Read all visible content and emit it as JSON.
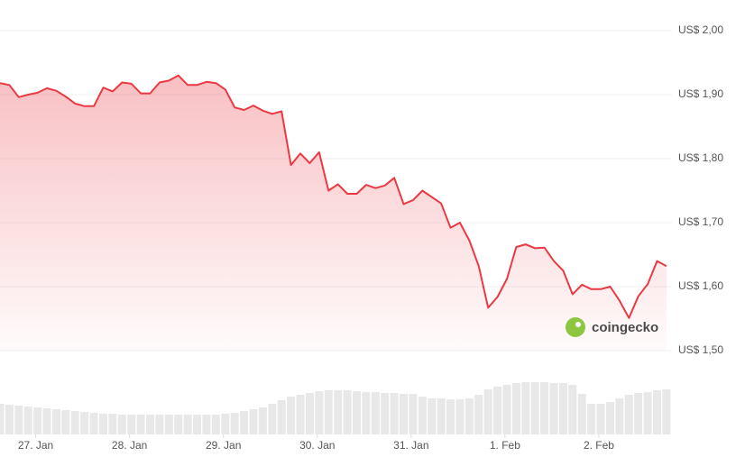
{
  "chart_data": {
    "type": "area",
    "watermark": "coingecko",
    "x": [
      -0.38,
      -0.28,
      -0.18,
      -0.08,
      0.02,
      0.12,
      0.22,
      0.32,
      0.42,
      0.52,
      0.62,
      0.72,
      0.82,
      0.92,
      1.02,
      1.12,
      1.22,
      1.32,
      1.42,
      1.52,
      1.62,
      1.72,
      1.82,
      1.92,
      2.02,
      2.12,
      2.22,
      2.32,
      2.42,
      2.52,
      2.62,
      2.72,
      2.82,
      2.92,
      3.02,
      3.12,
      3.22,
      3.32,
      3.42,
      3.52,
      3.62,
      3.72,
      3.82,
      3.92,
      4.02,
      4.12,
      4.22,
      4.32,
      4.42,
      4.52,
      4.62,
      4.72,
      4.82,
      4.92,
      5.02,
      5.12,
      5.22,
      5.32,
      5.42,
      5.52,
      5.62,
      5.72,
      5.82,
      5.92,
      6.02,
      6.12,
      6.22,
      6.32,
      6.42,
      6.52,
      6.62,
      6.72
    ],
    "series": [
      {
        "color": "#ea3943",
        "values": [
          1.918,
          1.915,
          1.896,
          1.9,
          1.903,
          1.91,
          1.906,
          1.897,
          1.886,
          1.882,
          1.882,
          1.911,
          1.905,
          1.919,
          1.917,
          1.902,
          1.902,
          1.919,
          1.922,
          1.93,
          1.915,
          1.915,
          1.92,
          1.918,
          1.908,
          1.88,
          1.876,
          1.883,
          1.875,
          1.87,
          1.874,
          1.79,
          1.808,
          1.793,
          1.81,
          1.75,
          1.76,
          1.745,
          1.745,
          1.759,
          1.754,
          1.758,
          1.77,
          1.729,
          1.735,
          1.75,
          1.74,
          1.73,
          1.692,
          1.7,
          1.672,
          1.632,
          1.567,
          1.584,
          1.612,
          1.662,
          1.666,
          1.66,
          1.661,
          1.64,
          1.625,
          1.588,
          1.603,
          1.596,
          1.596,
          1.6,
          1.578,
          1.551,
          1.585,
          1.604,
          1.64,
          1.632
        ]
      }
    ],
    "volume": {
      "color": "#e8e8e8",
      "vlim": [
        0,
        100
      ],
      "values": [
        34,
        33,
        32,
        31,
        30,
        29,
        28,
        27,
        26,
        25,
        24,
        23,
        23,
        22,
        22,
        22,
        22,
        22,
        22,
        22,
        22,
        22,
        22,
        22,
        23,
        24,
        26,
        28,
        30,
        34,
        38,
        42,
        44,
        46,
        48,
        49,
        49,
        49,
        48,
        47,
        47,
        46,
        46,
        45,
        45,
        42,
        40,
        40,
        39,
        39,
        40,
        44,
        50,
        53,
        55,
        57,
        58,
        58,
        58,
        57,
        57,
        55,
        45,
        34,
        34,
        36,
        40,
        44,
        46,
        47,
        49,
        50
      ]
    },
    "xlim": [
      -0.38,
      6.72
    ],
    "xticks": [
      {
        "value": 0,
        "label": "27. Jan"
      },
      {
        "value": 1,
        "label": "28. Jan"
      },
      {
        "value": 2,
        "label": "29. Jan"
      },
      {
        "value": 3,
        "label": "30. Jan"
      },
      {
        "value": 4,
        "label": "31. Jan"
      },
      {
        "value": 5,
        "label": "1. Feb"
      },
      {
        "value": 6,
        "label": "2. Feb"
      }
    ],
    "ylim": [
      1.5,
      2.0
    ],
    "yticks": [
      {
        "value": 1.5,
        "label": "US$ 1,50"
      },
      {
        "value": 1.6,
        "label": "US$ 1,60"
      },
      {
        "value": 1.7,
        "label": "US$ 1,70"
      },
      {
        "value": 1.8,
        "label": "US$ 1,80"
      },
      {
        "value": 1.9,
        "label": "US$ 1,90"
      },
      {
        "value": 2.0,
        "label": "US$ 2,00"
      }
    ],
    "grid": true
  }
}
